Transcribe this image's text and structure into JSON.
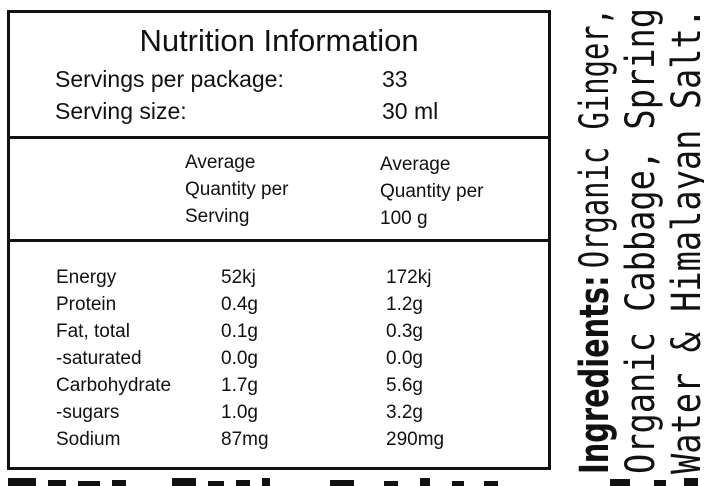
{
  "nutrition_panel": {
    "title": "Nutrition Information",
    "servings_per_package_label": "Servings per package:",
    "servings_per_package_value": "33",
    "serving_size_label": "Serving size:",
    "serving_size_value": "30 ml",
    "column_headers": {
      "per_serving": [
        "Average",
        "Quantity per",
        "Serving"
      ],
      "per_100g": [
        "Average",
        "Quantity per",
        "100 g"
      ]
    },
    "rows": [
      {
        "nutrient": "Energy",
        "per_serving": "52kj",
        "per_100g": "172kj"
      },
      {
        "nutrient": "Protein",
        "per_serving": "0.4g",
        "per_100g": "1.2g"
      },
      {
        "nutrient": "Fat, total",
        "per_serving": "0.1g",
        "per_100g": "0.3g"
      },
      {
        "nutrient": "-saturated",
        "per_serving": "0.0g",
        "per_100g": "0.0g"
      },
      {
        "nutrient": "Carbohydrate",
        "per_serving": "1.7g",
        "per_100g": "5.6g"
      },
      {
        "nutrient": "-sugars",
        "per_serving": "1.0g",
        "per_100g": "3.2g"
      },
      {
        "nutrient": "Sodium",
        "per_serving": "87mg",
        "per_100g": "290mg"
      }
    ]
  },
  "ingredients": {
    "label": "Ingredients:",
    "line1": "Organic Ginger,",
    "line2": "Organic Cabbage, Spring",
    "line3": "Water & Himalayan Salt."
  }
}
